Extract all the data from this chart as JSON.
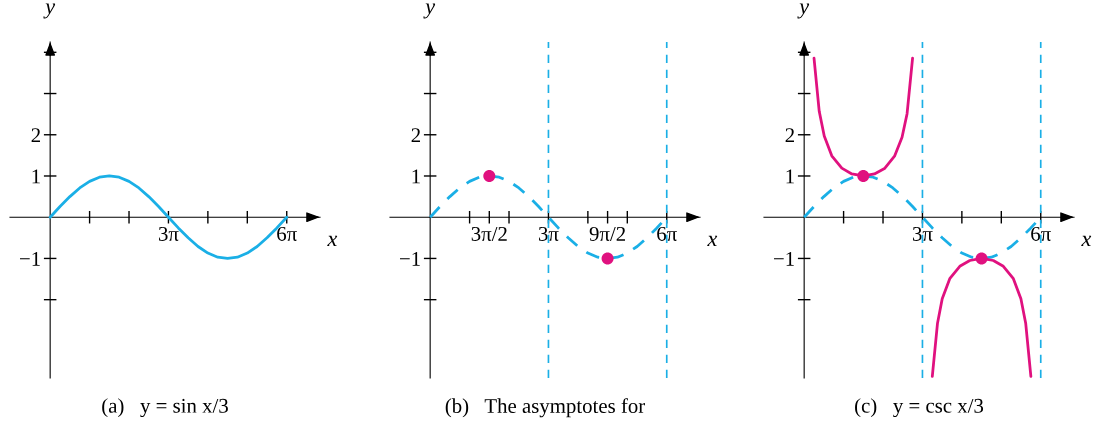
{
  "chart_data": [
    {
      "type": "line",
      "title": "(a)   y = sin x/3",
      "xlabel": "x",
      "ylabel": "y",
      "grid": false,
      "legend": false,
      "xlim": [
        -3.2,
        21.5
      ],
      "ylim": [
        -3.9,
        4.25
      ],
      "xticks": [
        {
          "value": 3.1416,
          "label": null
        },
        {
          "value": 6.2832,
          "label": null
        },
        {
          "value": 9.4248,
          "label": "3π"
        },
        {
          "value": 12.566,
          "label": null
        },
        {
          "value": 15.708,
          "label": null
        },
        {
          "value": 18.85,
          "label": "6π"
        }
      ],
      "yticks": [
        {
          "value": -2,
          "label": null
        },
        {
          "value": -1,
          "label": "−1"
        },
        1,
        2,
        {
          "value": 3,
          "label": null
        },
        {
          "value": 4,
          "label": null
        }
      ],
      "series": [
        {
          "type": "line",
          "color": "#1aafe6",
          "line_style": "solid",
          "marker": "none",
          "x": [
            0,
            0.785,
            1.571,
            2.356,
            3.142,
            3.927,
            4.712,
            5.498,
            6.283,
            7.069,
            7.854,
            8.639,
            9.425,
            10.21,
            10.996,
            11.781,
            12.566,
            13.352,
            14.137,
            14.923,
            15.708,
            16.493,
            17.279,
            18.064,
            18.85
          ],
          "values": [
            0,
            0.26,
            0.5,
            0.71,
            0.87,
            0.97,
            1,
            0.97,
            0.87,
            0.71,
            0.5,
            0.26,
            0,
            -0.26,
            -0.5,
            -0.71,
            -0.87,
            -0.97,
            -1,
            -0.97,
            -0.87,
            -0.71,
            -0.5,
            -0.26,
            0
          ]
        }
      ]
    },
    {
      "type": "line",
      "title": "(b)   The asymptotes for",
      "xlabel": "x",
      "ylabel": "y",
      "grid": false,
      "legend": false,
      "xlim": [
        -3.2,
        21.5
      ],
      "ylim": [
        -3.9,
        4.25
      ],
      "xticks": [
        {
          "value": 3.1416,
          "label": null
        },
        {
          "value": 4.7124,
          "label": "3π/2"
        },
        {
          "value": 6.2832,
          "label": null
        },
        {
          "value": 9.4248,
          "label": "3π"
        },
        {
          "value": 12.566,
          "label": null
        },
        {
          "value": 14.137,
          "label": "9π/2"
        },
        {
          "value": 15.708,
          "label": null
        },
        {
          "value": 18.85,
          "label": "6π"
        }
      ],
      "yticks": [
        {
          "value": -2,
          "label": null
        },
        {
          "value": -1,
          "label": "−1"
        },
        1,
        2,
        {
          "value": 3,
          "label": null
        },
        {
          "value": 4,
          "label": null
        }
      ],
      "ref_lines": [
        {
          "axis": "x",
          "value": 9.4248,
          "label": null,
          "color": "#1aafe6",
          "line_style": "dashed"
        },
        {
          "axis": "x",
          "value": 18.85,
          "label": null,
          "color": "#1aafe6",
          "line_style": "dashed"
        }
      ],
      "series": [
        {
          "type": "line",
          "color": "#1aafe6",
          "line_style": "dashed",
          "marker": "none",
          "x": [
            0,
            0.785,
            1.571,
            2.356,
            3.142,
            3.927,
            4.712,
            5.498,
            6.283,
            7.069,
            7.854,
            8.639,
            9.425,
            10.21,
            10.996,
            11.781,
            12.566,
            13.352,
            14.137,
            14.923,
            15.708,
            16.493,
            17.279,
            18.064,
            18.85
          ],
          "values": [
            0,
            0.26,
            0.5,
            0.71,
            0.87,
            0.97,
            1,
            0.97,
            0.87,
            0.71,
            0.5,
            0.26,
            0,
            -0.26,
            -0.5,
            -0.71,
            -0.87,
            -0.97,
            -1,
            -0.97,
            -0.87,
            -0.71,
            -0.5,
            -0.26,
            0
          ]
        },
        {
          "type": "scatter",
          "color": "#e0117f",
          "marker": "circle",
          "x": [
            4.7124,
            14.137
          ],
          "values": [
            1,
            -1
          ]
        }
      ]
    },
    {
      "type": "line",
      "title": "(c)   y = csc x/3",
      "xlabel": "x",
      "ylabel": "y",
      "grid": false,
      "legend": false,
      "xlim": [
        -3.2,
        21.5
      ],
      "ylim": [
        -3.9,
        4.25
      ],
      "xticks": [
        {
          "value": 3.1416,
          "label": null
        },
        {
          "value": 6.2832,
          "label": null
        },
        {
          "value": 9.4248,
          "label": "3π"
        },
        {
          "value": 12.566,
          "label": null
        },
        {
          "value": 15.708,
          "label": null
        },
        {
          "value": 18.85,
          "label": "6π"
        }
      ],
      "yticks": [
        {
          "value": -2,
          "label": null
        },
        {
          "value": -1,
          "label": "−1"
        },
        1,
        2,
        {
          "value": 3,
          "label": null
        },
        {
          "value": 4,
          "label": null
        }
      ],
      "ref_lines": [
        {
          "axis": "x",
          "value": 9.4248,
          "label": null,
          "color": "#1aafe6",
          "line_style": "dashed"
        },
        {
          "axis": "x",
          "value": 18.85,
          "label": null,
          "color": "#1aafe6",
          "line_style": "dashed"
        }
      ],
      "series": [
        {
          "type": "line",
          "color": "#1aafe6",
          "line_style": "dashed",
          "marker": "none",
          "x": [
            0,
            0.785,
            1.571,
            2.356,
            3.142,
            3.927,
            4.712,
            5.498,
            6.283,
            7.069,
            7.854,
            8.639,
            9.425,
            10.21,
            10.996,
            11.781,
            12.566,
            13.352,
            14.137,
            14.923,
            15.708,
            16.493,
            17.279,
            18.064,
            18.85
          ],
          "values": [
            0,
            0.26,
            0.5,
            0.71,
            0.87,
            0.97,
            1,
            0.97,
            0.87,
            0.71,
            0.5,
            0.26,
            0,
            -0.26,
            -0.5,
            -0.71,
            -0.87,
            -0.97,
            -1,
            -0.97,
            -0.87,
            -0.71,
            -0.5,
            -0.26,
            0
          ]
        },
        {
          "type": "line",
          "color": "#e0117f",
          "line_style": "solid",
          "marker": "none",
          "x": [
            0.785,
            1.2,
            1.6,
            2.2,
            3.0,
            3.8,
            4.712,
            5.6,
            6.4,
            7.2,
            7.8,
            8.2,
            8.639
          ],
          "values": [
            3.86,
            2.57,
            1.97,
            1.49,
            1.19,
            1.05,
            1,
            1.05,
            1.18,
            1.48,
            1.94,
            2.51,
            3.86
          ]
        },
        {
          "type": "line",
          "color": "#e0117f",
          "line_style": "solid",
          "marker": "none",
          "x": [
            10.21,
            10.625,
            11.0,
            11.6,
            12.4,
            13.2,
            14.137,
            15.07,
            15.87,
            16.67,
            17.27,
            17.65,
            18.064
          ],
          "values": [
            -3.86,
            -2.57,
            -1.98,
            -1.49,
            -1.19,
            -1.05,
            -1,
            -1.05,
            -1.19,
            -1.49,
            -1.98,
            -2.57,
            -3.86
          ]
        },
        {
          "type": "scatter",
          "color": "#e0117f",
          "marker": "circle",
          "x": [
            4.7124,
            14.137
          ],
          "values": [
            1,
            -1
          ]
        }
      ]
    }
  ]
}
